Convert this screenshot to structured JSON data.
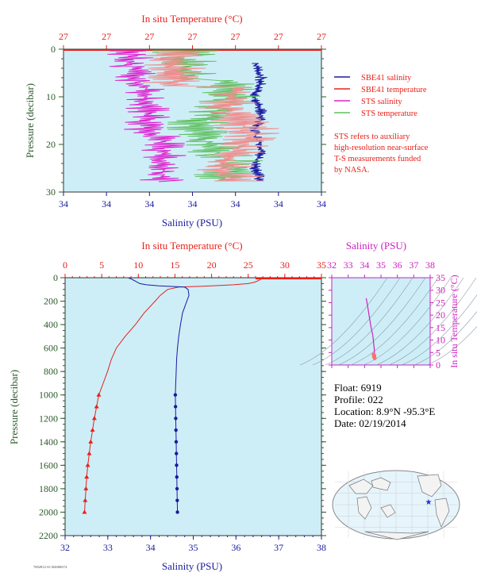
{
  "colors": {
    "salinity": "#1a1aa0",
    "temperature": "#e8201a",
    "sts_salinity": "#e020d0",
    "sts_temperature": "#60c060",
    "plot_bg": "#cdeef7",
    "magenta": "#d020c0",
    "axis_green": "#2a5a2a"
  },
  "top": {
    "top_axis_label": "In situ Temperature (°C)",
    "top_ticks": [
      "27",
      "27",
      "27",
      "27",
      "27",
      "27",
      "27"
    ],
    "bottom_axis_label": "Salinity (PSU)",
    "bottom_ticks": [
      "34",
      "34",
      "34",
      "34",
      "34",
      "34",
      "34"
    ],
    "y_label": "Pressure (decibar)",
    "y_ticks": [
      "0",
      "10",
      "20",
      "30"
    ],
    "legend": [
      "SBE41 salinity",
      "SBE41 temperature",
      "STS salinity",
      "STS temperature"
    ],
    "note": [
      "STS refers to auxiliary",
      "high-resolution near-surface",
      "T-S measurements funded",
      "by NASA."
    ]
  },
  "inset": {
    "title": "Salinity (PSU)",
    "x_ticks": [
      "32",
      "33",
      "34",
      "35",
      "36",
      "37",
      "38"
    ],
    "y_label": "In situ Temperature (°C)",
    "y_ticks": [
      "0",
      "5",
      "10",
      "15",
      "20",
      "25",
      "30",
      "35"
    ]
  },
  "info": {
    "float": "Float:  6919",
    "profile": "Profile:  022",
    "location": "Location:  8.9°N  -95.3°E",
    "date": "Date:  02/19/2014"
  },
  "footer_code": "7002812-S1 B2680S74",
  "chart_data": [
    {
      "type": "line",
      "title": "",
      "xlabel_top": "In situ Temperature (°C)",
      "xlabel_bottom": "Salinity (PSU)",
      "ylabel": "Pressure (decibar)",
      "ylim": [
        30,
        0
      ],
      "series": [
        {
          "name": "SBE41 salinity",
          "pressure": [
            3,
            6,
            9,
            12,
            15,
            18,
            21,
            24,
            27
          ],
          "salinity_fraction": [
            0.74,
            0.74,
            0.73,
            0.74,
            0.74,
            0.73,
            0.74,
            0.74,
            0.74
          ]
        },
        {
          "name": "SBE41 temperature",
          "pressure": [
            0
          ],
          "temperature_fraction": [
            0.0
          ]
        },
        {
          "name": "STS salinity",
          "pressure": [
            0,
            5,
            10,
            15,
            20,
            25,
            28
          ],
          "salinity_fraction": [
            0.35,
            0.2,
            0.3,
            0.3,
            0.4,
            0.38,
            0.4
          ]
        },
        {
          "name": "STS temperature",
          "pressure": [
            0,
            5,
            10,
            15,
            20,
            25,
            28
          ],
          "temperature_fraction": [
            0.55,
            0.6,
            0.65,
            0.7,
            0.72,
            0.75,
            0.6
          ]
        }
      ]
    },
    {
      "type": "line",
      "title": "",
      "xlabel_top": "In situ Temperature (°C)",
      "xlabel_bottom": "Salinity (PSU)",
      "ylabel": "Pressure (decibar)",
      "x_temp_ticks": [
        "0",
        "5",
        "10",
        "15",
        "20",
        "25",
        "30",
        "35"
      ],
      "x_sal_ticks": [
        "32",
        "33",
        "34",
        "35",
        "36",
        "37",
        "38"
      ],
      "y_ticks": [
        "0",
        "200",
        "400",
        "600",
        "800",
        "1000",
        "1200",
        "1400",
        "1600",
        "1800",
        "2000",
        "2200"
      ],
      "xlim_temperature": [
        0,
        35
      ],
      "xlim_salinity": [
        32,
        38
      ],
      "ylim": [
        2200,
        0
      ],
      "series": [
        {
          "name": "Temperature",
          "pressure": [
            0,
            5,
            10,
            20,
            30,
            40,
            50,
            60,
            70,
            80,
            100,
            150,
            200,
            300,
            400,
            500,
            600,
            700,
            800,
            900,
            1000,
            1100,
            1200,
            1300,
            1400,
            1500,
            1600,
            1700,
            1800,
            1900,
            2000
          ],
          "values": [
            27.0,
            27.0,
            26.8,
            26.5,
            26.2,
            25.8,
            25.0,
            23.0,
            20.0,
            15.5,
            14.0,
            13.0,
            12.3,
            10.8,
            9.6,
            8.2,
            7.0,
            6.3,
            5.8,
            5.2,
            4.6,
            4.3,
            4.0,
            3.75,
            3.5,
            3.3,
            3.1,
            2.95,
            2.85,
            2.75,
            2.65
          ]
        },
        {
          "name": "Salinity",
          "pressure": [
            0,
            5,
            10,
            20,
            30,
            40,
            50,
            60,
            70,
            80,
            100,
            150,
            200,
            300,
            400,
            500,
            600,
            700,
            800,
            900,
            1000,
            1100,
            1200,
            1300,
            1400,
            1500,
            1600,
            1700,
            1800,
            1900,
            2000
          ],
          "values": [
            33.5,
            33.5,
            33.55,
            33.6,
            33.65,
            33.7,
            33.75,
            33.9,
            34.2,
            34.8,
            34.88,
            34.9,
            34.85,
            34.75,
            34.7,
            34.66,
            34.63,
            34.61,
            34.6,
            34.59,
            34.58,
            34.585,
            34.59,
            34.595,
            34.6,
            34.605,
            34.61,
            34.615,
            34.62,
            34.625,
            34.63
          ]
        }
      ]
    },
    {
      "type": "scatter",
      "title": "Salinity (PSU)",
      "xlabel": "Salinity (PSU)",
      "ylabel": "In situ Temperature (°C)",
      "xlim": [
        32,
        38
      ],
      "ylim": [
        0,
        35
      ],
      "series": [
        {
          "name": "T-S",
          "x": [
            34.1,
            34.2,
            34.3,
            34.4,
            34.5,
            34.55,
            34.6,
            34.6,
            34.62
          ],
          "y": [
            26.8,
            23,
            19,
            15,
            12,
            9,
            6,
            4,
            2.7
          ]
        }
      ]
    }
  ]
}
